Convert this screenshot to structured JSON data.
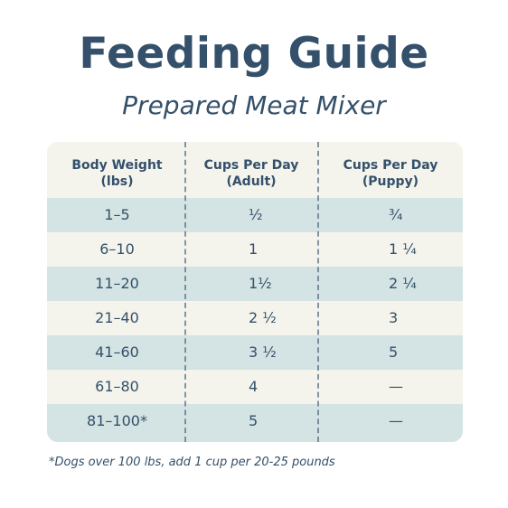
{
  "title": "Feeding Guide",
  "subtitle": "Prepared Meat Mixer",
  "table": {
    "headers": [
      {
        "line1": "Body Weight",
        "line2": "(lbs)"
      },
      {
        "line1": "Cups Per Day",
        "line2": "(Adult)"
      },
      {
        "line1": "Cups Per Day",
        "line2": "(Puppy)"
      }
    ],
    "rows": [
      {
        "weight": "1–5",
        "adult": "½",
        "puppy": "¾"
      },
      {
        "weight": "6–10",
        "adult": "1",
        "puppy": "1 ¼"
      },
      {
        "weight": "11–20",
        "adult": "1½",
        "puppy": "2 ¼"
      },
      {
        "weight": "21–40",
        "adult": "2 ½",
        "puppy": "3"
      },
      {
        "weight": "41–60",
        "adult": "3 ½",
        "puppy": "5"
      },
      {
        "weight": "61–80",
        "adult": "4",
        "puppy": "—"
      },
      {
        "weight": "81–100*",
        "adult": "5",
        "puppy": "—"
      }
    ]
  },
  "footnote": "*Dogs over 100 lbs, add 1 cup per 20-25 pounds",
  "colors": {
    "text": "#34506a",
    "shade_row": "#d4e3e3",
    "light_row": "#f4f4ec"
  }
}
